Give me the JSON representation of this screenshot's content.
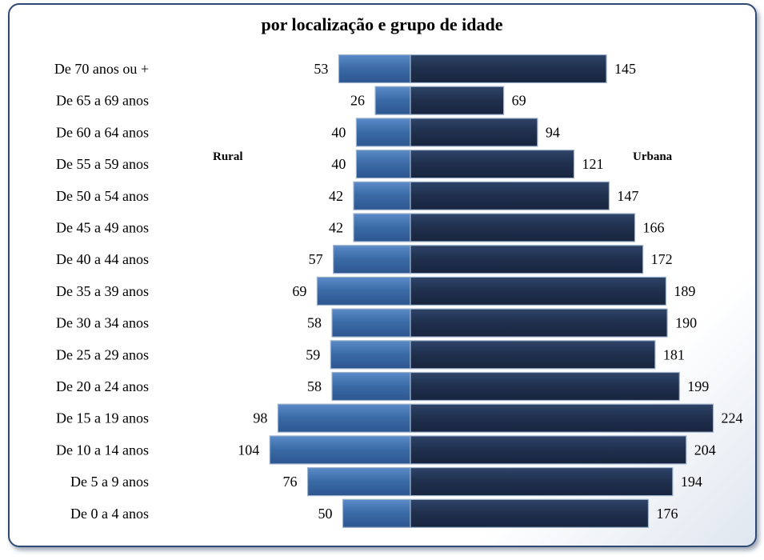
{
  "chart_data": {
    "type": "bar",
    "orientation": "horizontal",
    "title": "por localização e grupo de idade",
    "categories": [
      "De 70 anos ou +",
      "De 65 a 69 anos",
      "De 60 a 64 anos",
      "De 55 a 59 anos",
      "De 50 a 54 anos",
      "De 45 a 49 anos",
      "De 40 a 44 anos",
      "De 35 a 39 anos",
      "De 30 a 34 anos",
      "De 25 a 29 anos",
      "De 20 a 24 anos",
      "De 15 a 19 anos",
      "De 10 a 14 anos",
      "De 5 a 9 anos",
      "De 0 a 4 anos"
    ],
    "series": [
      {
        "name": "Rural",
        "values": [
          53,
          26,
          40,
          40,
          42,
          42,
          57,
          69,
          58,
          59,
          58,
          98,
          104,
          76,
          50
        ],
        "color": "#3a6aa5",
        "side": "left"
      },
      {
        "name": "Urbana",
        "values": [
          145,
          69,
          94,
          121,
          147,
          166,
          172,
          189,
          190,
          181,
          199,
          224,
          204,
          194,
          176
        ],
        "color": "#1f2f4d",
        "side": "right"
      }
    ],
    "grid": false,
    "legend": "inline"
  }
}
